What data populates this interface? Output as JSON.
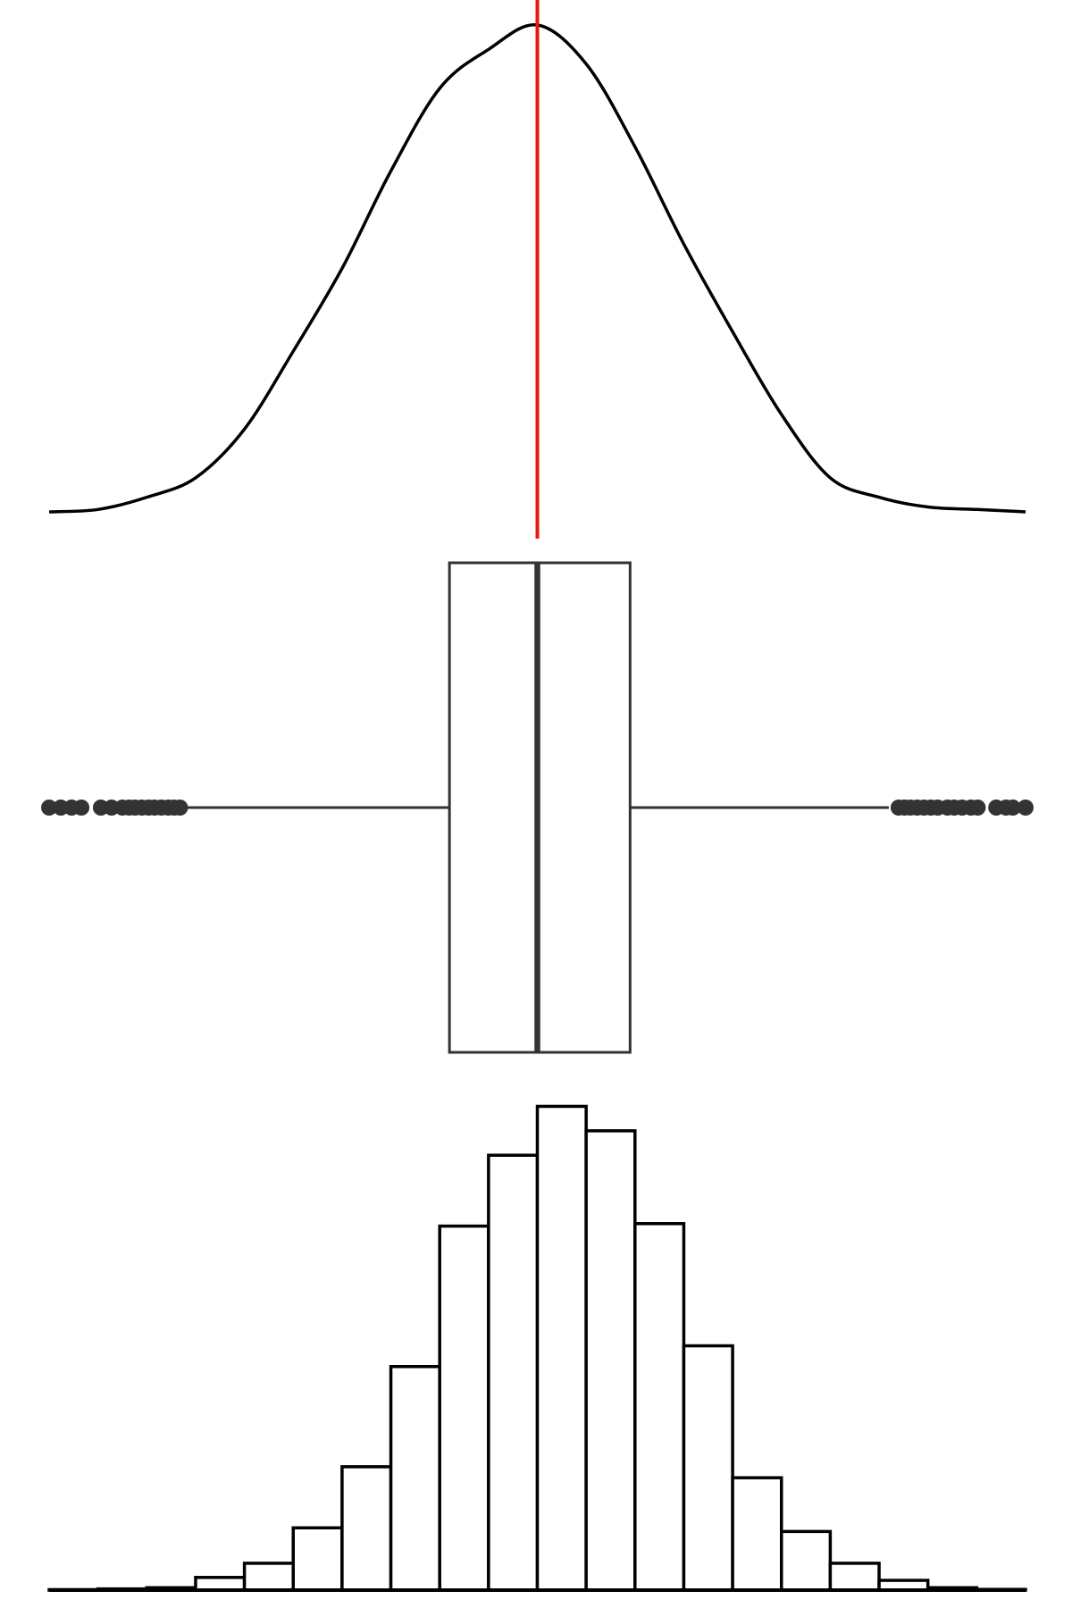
{
  "chart_data": [
    {
      "type": "area",
      "title": "",
      "xlabel": "",
      "ylabel": "",
      "grid": false,
      "x": [
        0,
        5,
        10,
        15,
        20,
        25,
        30,
        35,
        40,
        45,
        50,
        55,
        60,
        65,
        70,
        75,
        80,
        85,
        90,
        95,
        100
      ],
      "values": [
        0.0,
        0.005,
        0.03,
        0.07,
        0.17,
        0.33,
        0.5,
        0.7,
        0.87,
        0.95,
        1.0,
        0.92,
        0.75,
        0.55,
        0.37,
        0.2,
        0.07,
        0.03,
        0.01,
        0.005,
        0.0
      ],
      "colors": {
        "line": "#000000",
        "reference_line": "#e8180c"
      }
    },
    {
      "type": "boxplot",
      "title": "",
      "whisker_low": 14,
      "q1": 41,
      "median": 50,
      "q3": 59.5,
      "whisker_high": 86,
      "outliers": [
        0,
        1.2,
        2.3,
        3.3,
        5.3,
        6.4,
        7.5,
        8.2,
        8.8,
        9.5,
        10.2,
        10.8,
        11.5,
        12.2,
        12.8,
        13.4,
        87,
        87.6,
        88.2,
        88.9,
        89.6,
        90.3,
        91,
        92,
        92.7,
        93.5,
        94.4,
        95.1,
        97,
        98,
        98.7,
        100
      ],
      "colors": {
        "stroke": "#333333"
      }
    },
    {
      "type": "bar",
      "title": "",
      "xlabel": "",
      "ylabel": "",
      "grid": false,
      "bin_edges": [
        0,
        5,
        10,
        15,
        20,
        25,
        30,
        35,
        40,
        45,
        50,
        55,
        60,
        65,
        70,
        75,
        80,
        85,
        90,
        95,
        100
      ],
      "values": [
        0.2,
        0.5,
        1.0,
        5.2,
        11.0,
        25.5,
        50.5,
        91.5,
        149.0,
        178.0,
        198.0,
        188.0,
        150.0,
        100.0,
        46.0,
        24.0,
        11.0,
        4.0,
        1.0,
        0.3
      ],
      "ylim": [
        0,
        200
      ],
      "colors": {
        "stroke": "#000000",
        "fill": "#ffffff"
      }
    }
  ]
}
